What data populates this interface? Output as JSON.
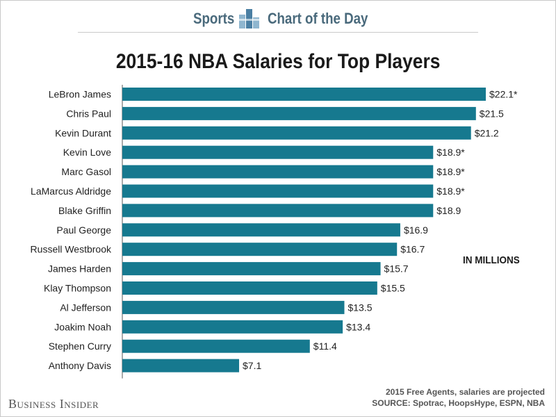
{
  "header": {
    "left_word": "Sports",
    "right_word": "Chart of the Day",
    "logo_icon": "bar-chart-logo-icon"
  },
  "chart_data": {
    "type": "bar",
    "orientation": "horizontal",
    "title": "2015-16 NBA Salaries for Top Players",
    "unit_label": "IN MILLIONS",
    "categories": [
      "LeBron James",
      "Chris Paul",
      "Kevin Durant",
      "Kevin Love",
      "Marc Gasol",
      "LaMarcus Aldridge",
      "Blake Griffin",
      "Paul George",
      "Russell Westbrook",
      "James Harden",
      "Klay Thompson",
      "Al Jefferson",
      "Joakim Noah",
      "Stephen Curry",
      "Anthony Davis"
    ],
    "values": [
      22.1,
      21.5,
      21.2,
      18.9,
      18.9,
      18.9,
      18.9,
      16.9,
      16.7,
      15.7,
      15.5,
      13.5,
      13.4,
      11.4,
      7.1
    ],
    "data_labels": [
      "$22.1*",
      "$21.5",
      "$21.2",
      "$18.9*",
      "$18.9*",
      "$18.9*",
      "$18.9",
      "$16.9",
      "$16.7",
      "$15.7",
      "$15.5",
      "$13.5",
      "$13.4",
      "$11.4",
      "$7.1"
    ],
    "xlim": [
      0,
      22.1
    ],
    "bar_color": "#16798f",
    "grid": false,
    "legend": "none"
  },
  "footer": {
    "brand": "Business Insider",
    "note": "2015 Free Agents, salaries are projected",
    "source": "SOURCE: Spotrac, HoopsHype, ESPN, NBA"
  }
}
